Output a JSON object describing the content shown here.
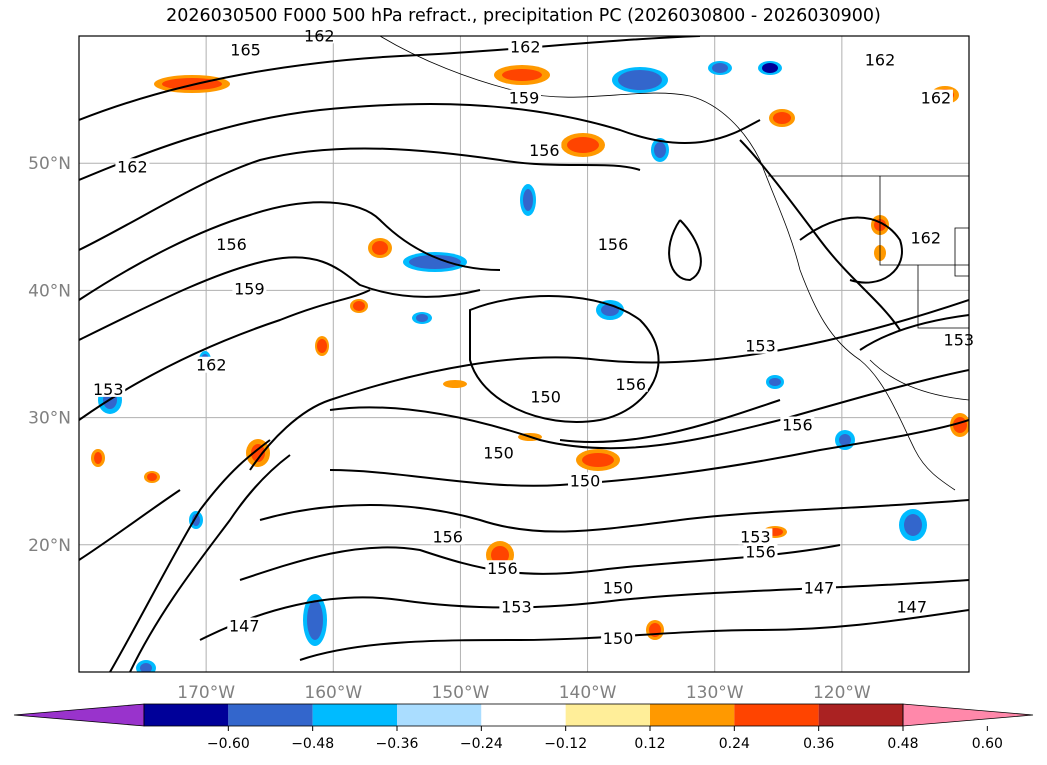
{
  "title": "2026030500 F000 500 hPa refract., precipitation PC (2026030800 - 2026030900)",
  "map": {
    "lon_range": [
      -180,
      -110
    ],
    "lat_range": [
      10,
      60
    ],
    "lon_ticks": [
      {
        "lon": -170,
        "label": "170°W"
      },
      {
        "lon": -160,
        "label": "160°W"
      },
      {
        "lon": -150,
        "label": "150°W"
      },
      {
        "lon": -140,
        "label": "140°W"
      },
      {
        "lon": -130,
        "label": "130°W"
      },
      {
        "lon": -120,
        "label": "120°W"
      }
    ],
    "lat_ticks": [
      {
        "lat": 20,
        "label": "20°N"
      },
      {
        "lat": 30,
        "label": "30°N"
      },
      {
        "lat": 40,
        "label": "40°N"
      },
      {
        "lat": 50,
        "label": "50°N"
      }
    ],
    "grid": true,
    "contour_labels": [
      {
        "text": "165",
        "lon": -166.9,
        "lat": 58.8
      },
      {
        "text": "162",
        "lon": -144.9,
        "lat": 59.0
      },
      {
        "text": "162",
        "lon": -161.1,
        "lat": 59.9
      },
      {
        "text": "159",
        "lon": -145.0,
        "lat": 55.0
      },
      {
        "text": "156",
        "lon": -143.4,
        "lat": 50.9
      },
      {
        "text": "162",
        "lon": -175.8,
        "lat": 49.6
      },
      {
        "text": "156",
        "lon": -168.0,
        "lat": 43.5
      },
      {
        "text": "159",
        "lon": -166.6,
        "lat": 40.0
      },
      {
        "text": "156",
        "lon": -138.0,
        "lat": 43.5
      },
      {
        "text": "162",
        "lon": -113.4,
        "lat": 44.0
      },
      {
        "text": "153",
        "lon": -177.7,
        "lat": 32.1
      },
      {
        "text": "162",
        "lon": -169.6,
        "lat": 34.0
      },
      {
        "text": "150",
        "lon": -143.3,
        "lat": 31.5
      },
      {
        "text": "156",
        "lon": -136.6,
        "lat": 32.5
      },
      {
        "text": "153",
        "lon": -126.4,
        "lat": 35.5
      },
      {
        "text": "153",
        "lon": -110.8,
        "lat": 36.0
      },
      {
        "text": "156",
        "lon": -123.5,
        "lat": 29.3
      },
      {
        "text": "150",
        "lon": -147.0,
        "lat": 27.1
      },
      {
        "text": "150",
        "lon": -140.2,
        "lat": 24.9
      },
      {
        "text": "156",
        "lon": -151.0,
        "lat": 20.5
      },
      {
        "text": "153",
        "lon": -126.8,
        "lat": 20.5
      },
      {
        "text": "156",
        "lon": -126.4,
        "lat": 19.3
      },
      {
        "text": "156",
        "lon": -146.7,
        "lat": 18.0
      },
      {
        "text": "150",
        "lon": -137.6,
        "lat": 16.5
      },
      {
        "text": "147",
        "lon": -121.8,
        "lat": 16.5
      },
      {
        "text": "147",
        "lon": -114.5,
        "lat": 15.0
      },
      {
        "text": "153",
        "lon": -145.6,
        "lat": 15.0
      },
      {
        "text": "147",
        "lon": -167.0,
        "lat": 13.5
      },
      {
        "text": "150",
        "lon": -137.6,
        "lat": 12.5
      },
      {
        "text": "162",
        "lon": -117.0,
        "lat": 58.0
      },
      {
        "text": "162",
        "lon": -112.6,
        "lat": 55.0
      }
    ]
  },
  "colorbar": {
    "ticks": [
      "−0.60",
      "−0.48",
      "−0.36",
      "−0.24",
      "−0.12",
      "0.12",
      "0.24",
      "0.36",
      "0.48",
      "0.60"
    ],
    "colors": [
      "#9933cc",
      "#000099",
      "#3366cc",
      "#00bbff",
      "#aaddff",
      "#ffffff",
      "#ffee99",
      "#ff9900",
      "#ff4400",
      "#aa2222",
      "#ff88aa"
    ]
  }
}
